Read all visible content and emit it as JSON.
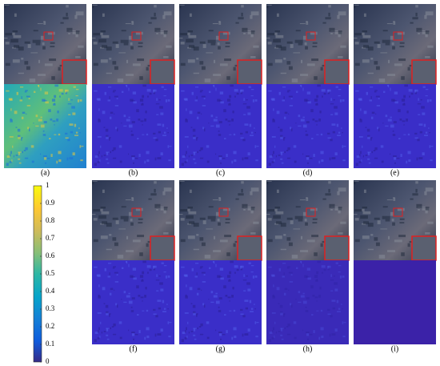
{
  "panels": [
    {
      "label": "(a)",
      "error_style": "parula"
    },
    {
      "label": "(b)",
      "error_style": "blue"
    },
    {
      "label": "(c)",
      "error_style": "blue"
    },
    {
      "label": "(d)",
      "error_style": "blue"
    },
    {
      "label": "(e)",
      "error_style": "blue"
    },
    {
      "label": "(f)",
      "error_style": "blue"
    },
    {
      "label": "(g)",
      "error_style": "blue"
    },
    {
      "label": "(h)",
      "error_style": "faint"
    },
    {
      "label": "(i)",
      "error_style": "flat"
    }
  ],
  "colorbar": {
    "lim": [
      0,
      1
    ],
    "ticks": [
      0,
      0.1,
      0.2,
      0.3,
      0.4,
      0.5,
      0.6,
      0.7,
      0.8,
      0.9,
      1
    ]
  }
}
